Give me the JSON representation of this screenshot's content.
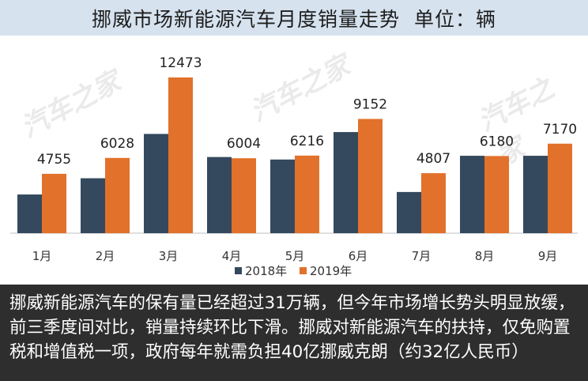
{
  "title": "挪威市场新能源汽车月度销量走势",
  "unit": "单位：辆",
  "watermark": "汽车之家",
  "caption": "挪威新能源汽车的保有量已经超过31万辆，但今年市场增长势头明显放缓，前三季度间对比，销量持续环比下滑。挪威对新能源汽车的扶持，仅免购置税和增值税一项，政府每年就需负担40亿挪威克朗（约32亿人民币）",
  "colors": {
    "2018": "#34495e",
    "2019": "#e2712b",
    "title_bg": "#d6e2ee",
    "caption_bg": "#2e2e2e"
  },
  "chart_data": {
    "type": "bar",
    "categories": [
      "1月",
      "2月",
      "3月",
      "4月",
      "5月",
      "6月",
      "7月",
      "8月",
      "9月"
    ],
    "series": [
      {
        "name": "2018年",
        "values": [
          3100,
          4400,
          7950,
          6100,
          5900,
          8100,
          3300,
          6200,
          6200
        ]
      },
      {
        "name": "2019年",
        "values": [
          4755,
          6028,
          12473,
          6004,
          6216,
          9152,
          4807,
          6180,
          7170
        ]
      }
    ],
    "data_labels": [
      "4755",
      "6028",
      "12473",
      "6004",
      "6216",
      "9152",
      "4807",
      "6180",
      "7170"
    ],
    "ylim": [
      0,
      14000
    ],
    "legend_position": "bottom",
    "grid": false
  }
}
